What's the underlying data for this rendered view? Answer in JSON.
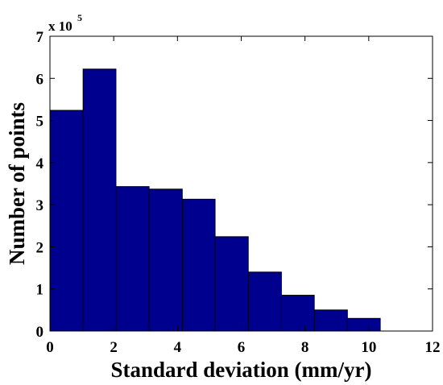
{
  "chart_data": {
    "type": "bar",
    "title": "",
    "xlabel": "Standard deviation (mm/yr)",
    "ylabel": "Number of points",
    "y_multiplier_base": "x 10",
    "y_multiplier_exponent": "5",
    "xlim": [
      0,
      12
    ],
    "ylim": [
      0,
      7
    ],
    "x_ticks": [
      "0",
      "2",
      "4",
      "6",
      "8",
      "10",
      "12"
    ],
    "x_tick_values": [
      0,
      2,
      4,
      6,
      8,
      10,
      12
    ],
    "y_ticks": [
      "0",
      "1",
      "2",
      "3",
      "4",
      "5",
      "6",
      "7"
    ],
    "y_tick_values": [
      0,
      1,
      2,
      3,
      4,
      5,
      6,
      7
    ],
    "bins": [
      {
        "x0": 0.0,
        "x1": 1.04,
        "value": 5.24
      },
      {
        "x0": 1.04,
        "x1": 2.07,
        "value": 6.22
      },
      {
        "x0": 2.07,
        "x1": 3.11,
        "value": 3.43
      },
      {
        "x0": 3.11,
        "x1": 4.15,
        "value": 3.37
      },
      {
        "x0": 4.15,
        "x1": 5.18,
        "value": 3.13
      },
      {
        "x0": 5.18,
        "x1": 6.22,
        "value": 2.24
      },
      {
        "x0": 6.22,
        "x1": 7.26,
        "value": 1.4
      },
      {
        "x0": 7.26,
        "x1": 8.29,
        "value": 0.85
      },
      {
        "x0": 8.29,
        "x1": 9.33,
        "value": 0.5
      },
      {
        "x0": 9.33,
        "x1": 10.36,
        "value": 0.3
      }
    ],
    "bar_color": "#00008f",
    "edge_color": "#000000",
    "grid": false
  }
}
